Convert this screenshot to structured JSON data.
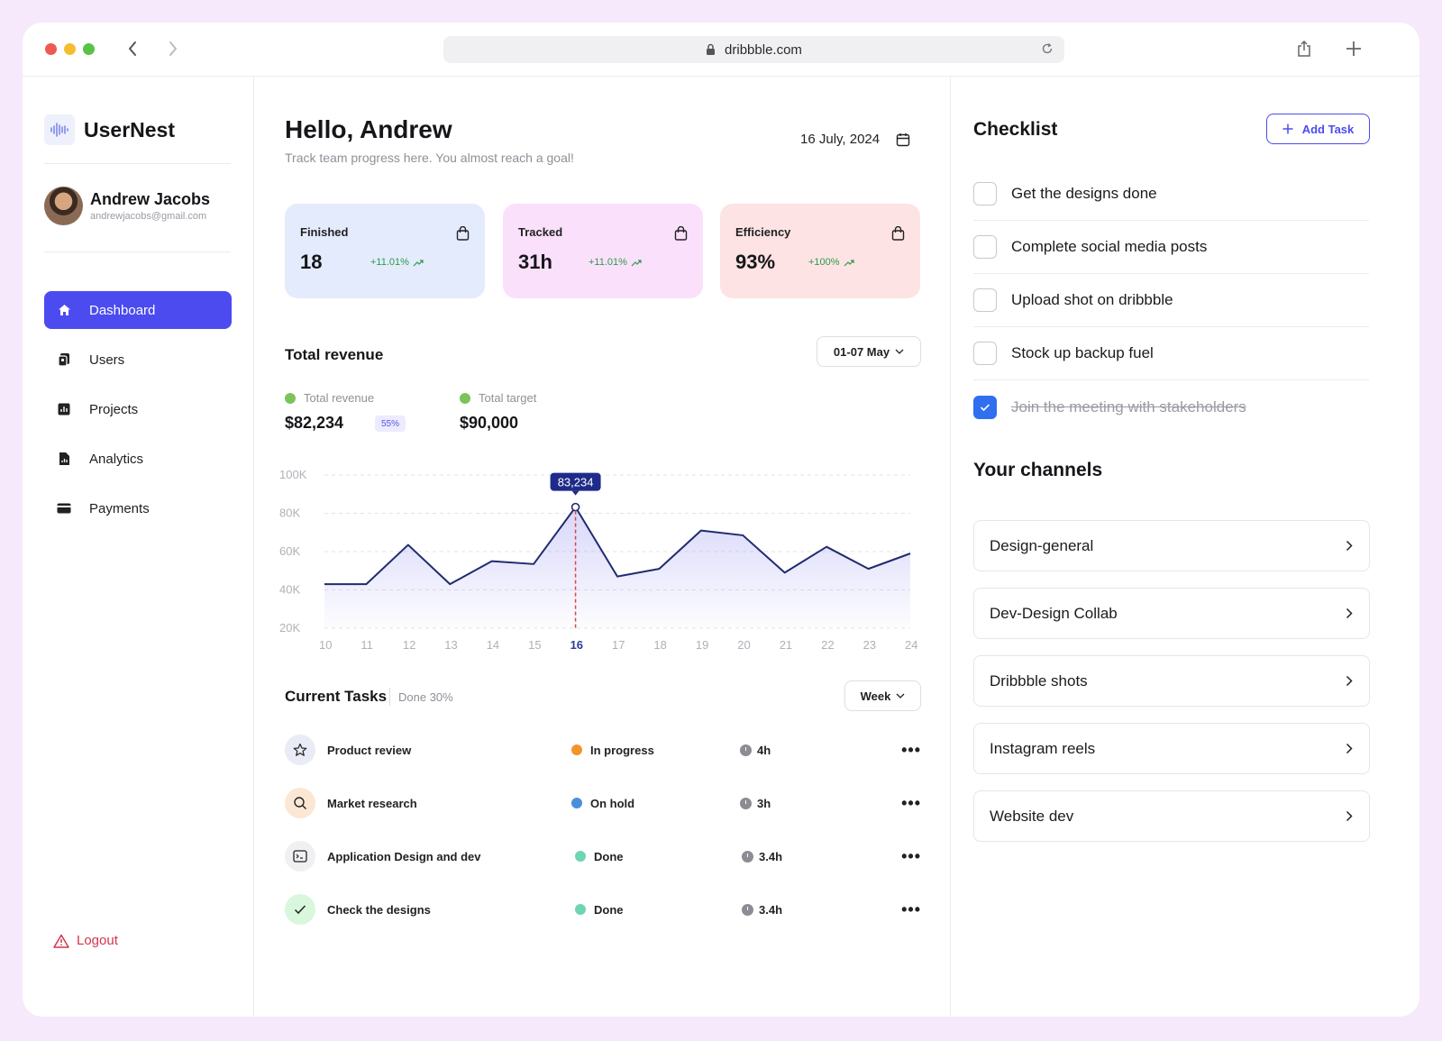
{
  "browser": {
    "url": "dribbble.com",
    "traffic_colors": [
      "#ee5a52",
      "#f5be30",
      "#5ac245"
    ]
  },
  "sidebar": {
    "brand": "UserNest",
    "user": {
      "name": "Andrew Jacobs",
      "email": "andrewjacobs@gmail.com"
    },
    "items": [
      {
        "label": "Dashboard",
        "icon": "home-icon",
        "active": true
      },
      {
        "label": "Users",
        "icon": "users-icon",
        "active": false
      },
      {
        "label": "Projects",
        "icon": "projects-icon",
        "active": false
      },
      {
        "label": "Analytics",
        "icon": "analytics-icon",
        "active": false
      },
      {
        "label": "Payments",
        "icon": "payments-icon",
        "active": false
      }
    ],
    "logout": "Logout"
  },
  "header": {
    "greeting": "Hello, Andrew",
    "subtitle": "Track team progress here. You almost reach a goal!",
    "date": "16 July, 2024"
  },
  "stats": [
    {
      "label": "Finished",
      "value": "18",
      "delta": "+11.01%",
      "bg": "#e4ebfc"
    },
    {
      "label": "Tracked",
      "value": "31h",
      "delta": "+11.01%",
      "bg": "#fbe0fb"
    },
    {
      "label": "Efficiency",
      "value": "93%",
      "delta": "+100%",
      "bg": "#fde3e3"
    }
  ],
  "revenue": {
    "title": "Total revenue",
    "range": "01-07 May",
    "total_label": "Total revenue",
    "total_value": "$82,234",
    "total_pct": "55%",
    "target_label": "Total target",
    "target_value": "$90,000"
  },
  "chart_data": {
    "type": "area",
    "x": [
      10,
      11,
      12,
      13,
      14,
      15,
      16,
      17,
      18,
      19,
      20,
      21,
      22,
      23,
      24
    ],
    "values": [
      43000,
      43000,
      63500,
      43000,
      55000,
      53500,
      83234,
      47000,
      51000,
      71000,
      68500,
      49000,
      62500,
      51000,
      59000
    ],
    "yticks": [
      "100K",
      "80K",
      "60K",
      "40K",
      "20K"
    ],
    "ylim": [
      20000,
      100000
    ],
    "highlight": {
      "x": 16,
      "label": "83,234"
    },
    "grid": true,
    "line_color": "#1f2b6e"
  },
  "tasks": {
    "title": "Current Tasks",
    "done_note": "Done 30%",
    "filter": "Week",
    "rows": [
      {
        "name": "Product review",
        "status": "In progress",
        "status_color": "#f0952e",
        "time": "4h",
        "icon": "star-icon",
        "icon_bg": "#e9ecf6"
      },
      {
        "name": "Market research",
        "status": "On hold",
        "status_color": "#4a8fde",
        "time": "3h",
        "icon": "search-icon",
        "icon_bg": "#fbe7d4"
      },
      {
        "name": "Application Design and dev",
        "status": "Done",
        "status_color": "#6dd4b4",
        "time": "3.4h",
        "icon": "window-icon",
        "icon_bg": "#f0f0f2"
      },
      {
        "name": "Check the designs",
        "status": "Done",
        "status_color": "#6dd4b4",
        "time": "3.4h",
        "icon": "check-icon",
        "icon_bg": "#d9f7dd"
      }
    ]
  },
  "checklist": {
    "title": "Checklist",
    "add_label": "Add Task",
    "items": [
      {
        "label": "Get the designs done",
        "checked": false
      },
      {
        "label": "Complete social media posts",
        "checked": false
      },
      {
        "label": "Upload shot on dribbble",
        "checked": false
      },
      {
        "label": "Stock up backup fuel",
        "checked": false
      },
      {
        "label": "Join the meeting with stakeholders",
        "checked": true
      }
    ]
  },
  "channels": {
    "title": "Your channels",
    "items": [
      "Design-general",
      "Dev-Design Collab",
      "Dribbble shots",
      "Instagram reels",
      "Website dev"
    ]
  }
}
